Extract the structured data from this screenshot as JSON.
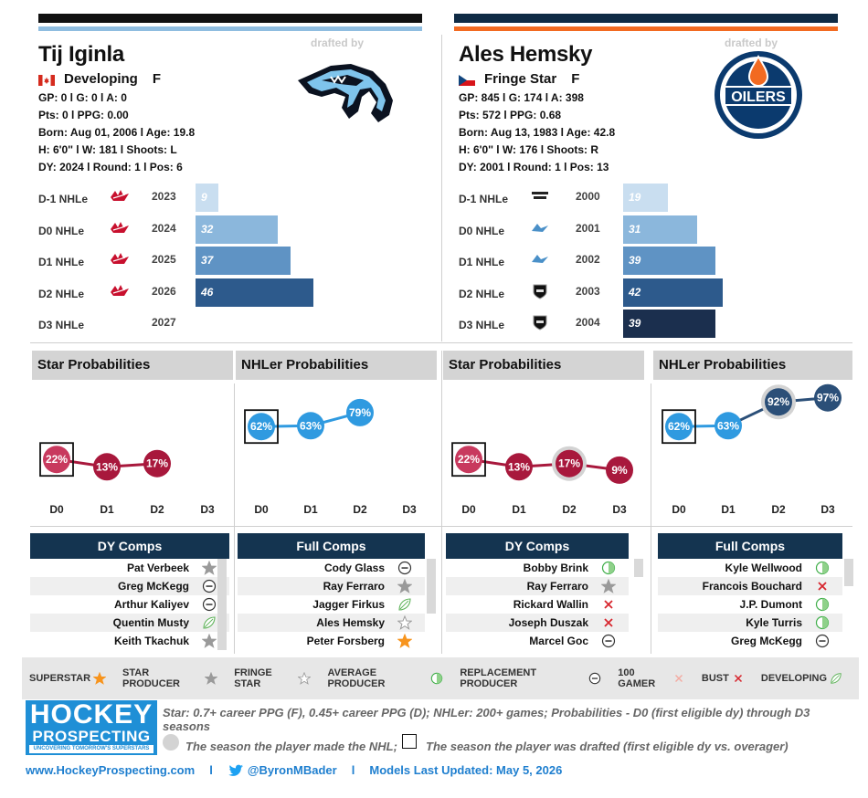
{
  "left_player": {
    "name": "Tij Iginla",
    "drafted_by": "drafted by",
    "status": "Developing",
    "position": "F",
    "stats": [
      "GP: 0 l G: 0 l A: 0",
      "Pts: 0 l PPG: 0.00",
      "Born: Aug 01, 2006 l Age: 19.8",
      "H: 6'0'' l W: 181 l Shoots: L",
      "DY: 2024 l Round: 1 l Pos: 6"
    ],
    "nhle": [
      {
        "label": "D-1 NHLe",
        "year": "2023",
        "value": 9,
        "text": "9",
        "color": "#c9def0"
      },
      {
        "label": "D0 NHLe",
        "year": "2024",
        "value": 32,
        "text": "32",
        "color": "#8bb7dc"
      },
      {
        "label": "D1 NHLe",
        "year": "2025",
        "value": 37,
        "text": "37",
        "color": "#5f93c4"
      },
      {
        "label": "D2 NHLe",
        "year": "2026",
        "value": 46,
        "text": "46",
        "color": "#2d5a8c"
      },
      {
        "label": "D3 NHLe",
        "year": "2027",
        "value": null,
        "text": "",
        "color": "#ffffff"
      }
    ]
  },
  "right_player": {
    "name": "Ales Hemsky",
    "drafted_by": "drafted by",
    "status": "Fringe Star",
    "position": "F",
    "stats": [
      "GP: 845 l G: 174 l A: 398",
      "Pts: 572 l PPG: 0.68",
      "Born: Aug 13, 1983 l Age: 42.8",
      "H: 6'0'' l W: 176 l Shoots: R",
      "DY: 2001 l Round: 1 l Pos: 13"
    ],
    "nhle": [
      {
        "label": "D-1 NHLe",
        "year": "2000",
        "value": 19,
        "text": "19",
        "color": "#c9def0"
      },
      {
        "label": "D0 NHLe",
        "year": "2001",
        "value": 31,
        "text": "31",
        "color": "#8bb7dc"
      },
      {
        "label": "D1 NHLe",
        "year": "2002",
        "value": 39,
        "text": "39",
        "color": "#5f93c4"
      },
      {
        "label": "D2 NHLe",
        "year": "2003",
        "value": 42,
        "text": "42",
        "color": "#2d5a8c"
      },
      {
        "label": "D3 NHLe",
        "year": "2004",
        "value": 39,
        "text": "39",
        "color": "#1b2f4e"
      }
    ],
    "team_logo_text": "OILERS"
  },
  "chart_data": [
    {
      "type": "line",
      "title": "Star Probabilities",
      "x": [
        "D0",
        "D1",
        "D2",
        "D3"
      ],
      "values": [
        22,
        13,
        17,
        null
      ],
      "labels": [
        "22%",
        "13%",
        "17%",
        ""
      ],
      "ylim": [
        0,
        100
      ]
    },
    {
      "type": "line",
      "title": "NHLer Probabilities",
      "x": [
        "D0",
        "D1",
        "D2",
        "D3"
      ],
      "values": [
        62,
        63,
        79,
        null
      ],
      "labels": [
        "62%",
        "63%",
        "79%",
        ""
      ],
      "ylim": [
        0,
        100
      ]
    },
    {
      "type": "line",
      "title": "Star Probabilities",
      "x": [
        "D0",
        "D1",
        "D2",
        "D3"
      ],
      "values": [
        22,
        13,
        17,
        9
      ],
      "labels": [
        "22%",
        "13%",
        "17%",
        "9%"
      ],
      "ylim": [
        0,
        100
      ]
    },
    {
      "type": "line",
      "title": "NHLer Probabilities",
      "x": [
        "D0",
        "D1",
        "D2",
        "D3"
      ],
      "values": [
        62,
        63,
        92,
        97
      ],
      "labels": [
        "62%",
        "63%",
        "92%",
        "97%"
      ],
      "ylim": [
        0,
        100
      ]
    }
  ],
  "comps": [
    {
      "title": "DY Comps",
      "rows": [
        {
          "name": "Pat Verbeek",
          "icon": "star-producer"
        },
        {
          "name": "Greg McKegg",
          "icon": "replacement"
        },
        {
          "name": "Arthur Kaliyev",
          "icon": "replacement"
        },
        {
          "name": "Quentin Musty",
          "icon": "developing"
        },
        {
          "name": "Keith Tkachuk",
          "icon": "star-producer"
        }
      ]
    },
    {
      "title": "Full Comps",
      "rows": [
        {
          "name": "Cody Glass",
          "icon": "replacement"
        },
        {
          "name": "Ray Ferraro",
          "icon": "star-producer"
        },
        {
          "name": "Jagger Firkus",
          "icon": "developing"
        },
        {
          "name": "Ales Hemsky",
          "icon": "fringe-star"
        },
        {
          "name": "Peter Forsberg",
          "icon": "superstar"
        }
      ]
    },
    {
      "title": "DY Comps",
      "rows": [
        {
          "name": "Bobby Brink",
          "icon": "average"
        },
        {
          "name": "Ray Ferraro",
          "icon": "star-producer"
        },
        {
          "name": "Rickard Wallin",
          "icon": "bust"
        },
        {
          "name": "Joseph Duszak",
          "icon": "bust"
        },
        {
          "name": "Marcel Goc",
          "icon": "replacement"
        }
      ]
    },
    {
      "title": "Full Comps",
      "rows": [
        {
          "name": "Kyle Wellwood",
          "icon": "average"
        },
        {
          "name": "Francois Bouchard",
          "icon": "bust"
        },
        {
          "name": "J.P. Dumont",
          "icon": "average"
        },
        {
          "name": "Kyle Turris",
          "icon": "average"
        },
        {
          "name": "Greg McKegg",
          "icon": "replacement"
        }
      ]
    }
  ],
  "legend": [
    {
      "label": "SUPERSTAR",
      "icon": "superstar"
    },
    {
      "label": "STAR PRODUCER",
      "icon": "star-producer"
    },
    {
      "label": "FRINGE STAR",
      "icon": "fringe-star"
    },
    {
      "label": "AVERAGE PRODUCER",
      "icon": "average"
    },
    {
      "label": "REPLACEMENT PRODUCER",
      "icon": "replacement"
    },
    {
      "label": "100 GAMER",
      "icon": "100-gamer"
    },
    {
      "label": "BUST",
      "icon": "bust"
    },
    {
      "label": "DEVELOPING",
      "icon": "developing"
    }
  ],
  "brand": {
    "line1": "HOCKEY",
    "line2": "PROSPECTING",
    "tagline": "UNCOVERING TOMORROW'S SUPERSTARS"
  },
  "notes": {
    "definition": "Star: 0.7+ career PPG (F), 0.45+ career PPG (D); NHLer: 200+ games; Probabilities - D0 (first eligible dy) through D3 seasons",
    "made_nhl": "The season the player made the NHL;",
    "drafted": "The season the player was drafted (first eligible dy vs. overager)"
  },
  "footer": {
    "site": "www.HockeyProspecting.com",
    "sep": "l",
    "twitter": "@ByronMBader",
    "updated": "Models Last Updated: May 5, 2026"
  }
}
